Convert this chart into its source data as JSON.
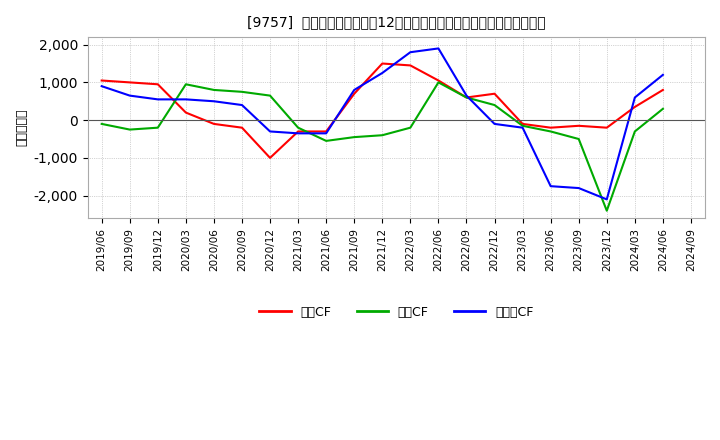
{
  "title": "[9757]  キャッシュフローの12か月移動合計の対前年同期増減額の推移",
  "ylabel": "（百万円）",
  "background_color": "#ffffff",
  "plot_bg_color": "#ffffff",
  "grid_color": "#aaaaaa",
  "ylim": [
    -2600,
    2200
  ],
  "yticks": [
    -2000,
    -1000,
    0,
    1000,
    2000
  ],
  "x_labels": [
    "2019/06",
    "2019/09",
    "2019/12",
    "2020/03",
    "2020/06",
    "2020/09",
    "2020/12",
    "2021/03",
    "2021/06",
    "2021/09",
    "2021/12",
    "2022/03",
    "2022/06",
    "2022/09",
    "2022/12",
    "2023/03",
    "2023/06",
    "2023/09",
    "2023/12",
    "2024/03",
    "2024/06",
    "2024/09"
  ],
  "series": {
    "営業CF": {
      "color": "#ff0000",
      "values": [
        1050,
        1000,
        950,
        200,
        -100,
        -200,
        -1000,
        -300,
        -300,
        700,
        1500,
        1450,
        1050,
        600,
        700,
        -100,
        -200,
        -150,
        -200,
        350,
        800,
        null
      ]
    },
    "投資CF": {
      "color": "#00aa00",
      "values": [
        -100,
        -250,
        -200,
        950,
        800,
        750,
        650,
        -200,
        -550,
        -450,
        -400,
        -200,
        1000,
        600,
        400,
        -150,
        -300,
        -500,
        -2400,
        -300,
        300,
        null
      ]
    },
    "フリーCF": {
      "color": "#0000ff",
      "values": [
        900,
        650,
        550,
        550,
        500,
        400,
        -300,
        -350,
        -350,
        800,
        1250,
        1800,
        1900,
        650,
        -100,
        -200,
        -1750,
        -1800,
        -2100,
        600,
        1200,
        null
      ]
    }
  },
  "legend_labels": [
    "営業CF",
    "投資CF",
    "フリーCF"
  ],
  "legend_colors": [
    "#ff0000",
    "#00aa00",
    "#0000ff"
  ]
}
